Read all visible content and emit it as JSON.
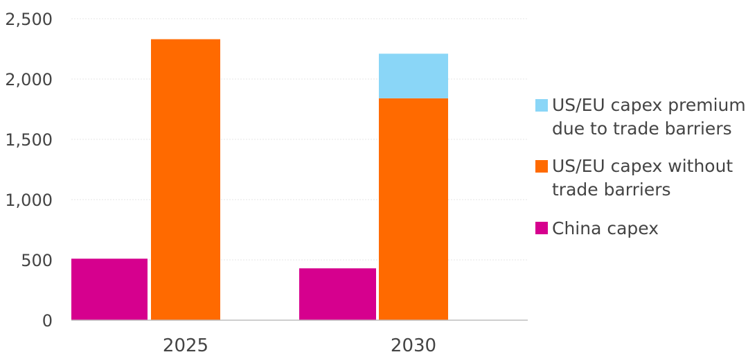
{
  "chart_data": {
    "type": "bar",
    "stacked_groups": true,
    "categories": [
      "2025",
      "2030"
    ],
    "ylim": [
      0,
      2500
    ],
    "yticks": [
      0,
      500,
      1000,
      1500,
      2000,
      2500
    ],
    "ytick_labels": [
      "0",
      "500",
      "1,000",
      "1,500",
      "2,000",
      "2,500"
    ],
    "grid": true,
    "legend_position": "right",
    "series": [
      {
        "name": "China capex",
        "legend_lines": [
          "China capex"
        ],
        "color": "#d6008e",
        "group": "china",
        "values": [
          510,
          430
        ]
      },
      {
        "name": "US/EU capex without trade barriers",
        "legend_lines": [
          "US/EU capex without",
          "trade barriers"
        ],
        "color": "#ff6a00",
        "group": "useu",
        "values": [
          2330,
          1840
        ]
      },
      {
        "name": "US/EU capex premium due to trade barriers",
        "legend_lines": [
          "US/EU capex premium",
          "due to trade barriers"
        ],
        "color": "#8ad6f7",
        "group": "useu",
        "values": [
          0,
          370
        ]
      }
    ],
    "legend_order": [
      2,
      1,
      0
    ]
  }
}
